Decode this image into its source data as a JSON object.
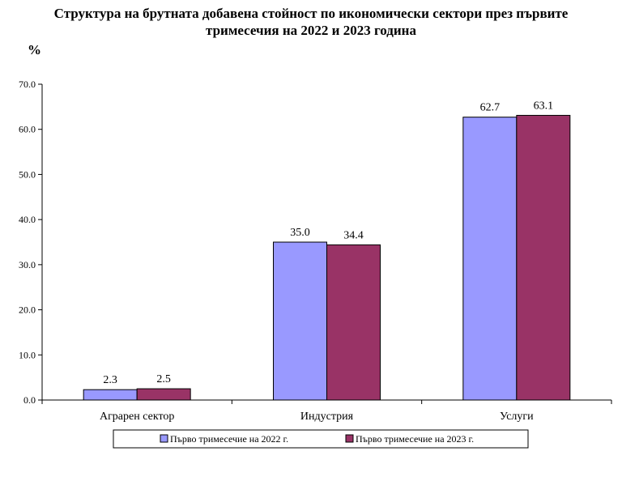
{
  "chart_data": {
    "type": "bar",
    "title_line1": "Структура на брутната добавена стойност по икономически сектори през първите",
    "title_line2": "тримесечия на 2022 и 2023 година",
    "ylabel": "%",
    "xlabel": "",
    "ylim": [
      0,
      70
    ],
    "ytick_step": 10,
    "ytick_labels": [
      "0.0",
      "10.0",
      "20.0",
      "30.0",
      "40.0",
      "50.0",
      "60.0",
      "70.0"
    ],
    "categories": [
      "Аграрен сектор",
      "Индустрия",
      "Услуги"
    ],
    "series": [
      {
        "name": "Първо тримесечие на 2022 г.",
        "values": [
          2.3,
          35.0,
          62.7
        ],
        "labels": [
          "2.3",
          "35.0",
          "62.7"
        ],
        "color": "#9999FF"
      },
      {
        "name": "Първо тримесечие на 2023 г.",
        "values": [
          2.5,
          34.4,
          63.1
        ],
        "labels": [
          "2.5",
          "34.4",
          "63.1"
        ],
        "color": "#993366"
      }
    ],
    "grid": false,
    "legend_position": "bottom"
  }
}
